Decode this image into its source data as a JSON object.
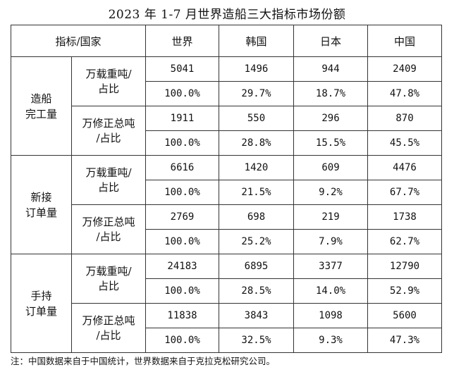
{
  "title": "2023 年 1-7 月世界造船三大指标市场份额",
  "table": {
    "header": {
      "corner": "指标/国家",
      "columns": [
        "世界",
        "韩国",
        "日本",
        "中国"
      ]
    },
    "groups": [
      {
        "category_lines": [
          "造船",
          "完工量"
        ],
        "metrics": [
          {
            "label_lines": [
              "万载重吨/",
              "占比"
            ],
            "values": [
              "5041",
              "1496",
              "944",
              "2409"
            ],
            "shares": [
              "100.0%",
              "29.7%",
              "18.7%",
              "47.8%"
            ]
          },
          {
            "label_lines": [
              "万修正总吨",
              "/占比"
            ],
            "values": [
              "1911",
              "550",
              "296",
              "870"
            ],
            "shares": [
              "100.0%",
              "28.8%",
              "15.5%",
              "45.5%"
            ]
          }
        ]
      },
      {
        "category_lines": [
          "新接",
          "订单量"
        ],
        "metrics": [
          {
            "label_lines": [
              "万载重吨/",
              "占比"
            ],
            "values": [
              "6616",
              "1420",
              "609",
              "4476"
            ],
            "shares": [
              "100.0%",
              "21.5%",
              "9.2%",
              "67.7%"
            ]
          },
          {
            "label_lines": [
              "万修正总吨",
              "/占比"
            ],
            "values": [
              "2769",
              "698",
              "219",
              "1738"
            ],
            "shares": [
              "100.0%",
              "25.2%",
              "7.9%",
              "62.7%"
            ]
          }
        ]
      },
      {
        "category_lines": [
          "手持",
          "订单量"
        ],
        "metrics": [
          {
            "label_lines": [
              "万载重吨/",
              "占比"
            ],
            "values": [
              "24183",
              "6895",
              "3377",
              "12790"
            ],
            "shares": [
              "100.0%",
              "28.5%",
              "14.0%",
              "52.9%"
            ]
          },
          {
            "label_lines": [
              "万修正总吨",
              "/占比"
            ],
            "values": [
              "11838",
              "3843",
              "1098",
              "5600"
            ],
            "shares": [
              "100.0%",
              "32.5%",
              "9.3%",
              "47.3%"
            ]
          }
        ]
      }
    ]
  },
  "note": "注：中国数据来自于中国统计，世界数据来自于克拉克松研究公司。"
}
